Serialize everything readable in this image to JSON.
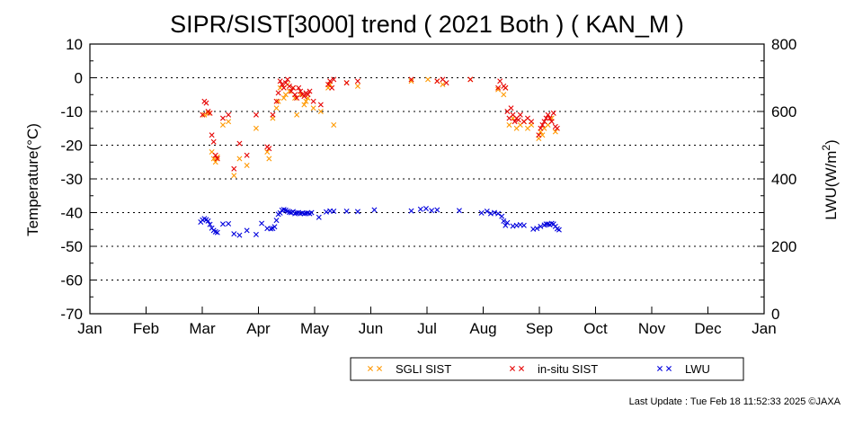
{
  "chart_data": {
    "type": "scatter",
    "title": "SIPR/SIST[3000] trend ( 2021 Both ) ( KAN_M )",
    "ylabel": "Temperature(°C)",
    "y2label_main": "LWU(W/m",
    "y2label_sup": "2",
    "y2label_end": ")",
    "ylim": [
      -70,
      10
    ],
    "y2lim": [
      0,
      800
    ],
    "yticks": [
      "10",
      "0",
      "-10",
      "-20",
      "-30",
      "-40",
      "-50",
      "-60",
      "-70"
    ],
    "y2ticks": [
      "800",
      "600",
      "400",
      "200",
      "0"
    ],
    "months": [
      "Jan",
      "Feb",
      "Mar",
      "Apr",
      "May",
      "Jun",
      "Jul",
      "Aug",
      "Sep",
      "Oct",
      "Nov",
      "Dec",
      "Jan"
    ],
    "grid": true,
    "legend_position": "bottom",
    "series": [
      {
        "name": "SGLI SIST",
        "axis": "left",
        "color": "#ff9900",
        "points": [
          [
            "Mar 4",
            -11
          ],
          [
            "Mar 6",
            -10.5
          ],
          [
            "Mar 8",
            -22
          ],
          [
            "Mar 9",
            -24
          ],
          [
            "Mar 10",
            -25
          ],
          [
            "Mar 11",
            -23.5
          ],
          [
            "Mar 14",
            -14
          ],
          [
            "Mar 17",
            -13
          ],
          [
            "Mar 20",
            -29
          ],
          [
            "Mar 23",
            -24
          ],
          [
            "Mar 27",
            -26
          ],
          [
            "Apr 1",
            -15
          ],
          [
            "Apr 7",
            -22
          ],
          [
            "Apr 8",
            -24
          ],
          [
            "Apr 10",
            -12
          ],
          [
            "Apr 12",
            -9
          ],
          [
            "Apr 13",
            -7
          ],
          [
            "Apr 14",
            -3
          ],
          [
            "Apr 16",
            -6
          ],
          [
            "Apr 17",
            -5
          ],
          [
            "Apr 18",
            -2
          ],
          [
            "Apr 19",
            -4
          ],
          [
            "Apr 21",
            -3
          ],
          [
            "Apr 22",
            -6
          ],
          [
            "Apr 23",
            -11
          ],
          [
            "Apr 25",
            -5
          ],
          [
            "Apr 27",
            -8
          ],
          [
            "Apr 28",
            -7
          ],
          [
            "Apr 29",
            -6
          ],
          [
            "May 2",
            -9
          ],
          [
            "May 6",
            -10
          ],
          [
            "May 10",
            -3
          ],
          [
            "May 11",
            -2
          ],
          [
            "May 13",
            -14
          ],
          [
            "May 20",
            -1.5
          ],
          [
            "May 26",
            -2.5
          ],
          [
            "Jun 24",
            -1
          ],
          [
            "Jul 3",
            -0.5
          ],
          [
            "Jul 8",
            -1
          ],
          [
            "Jul 11",
            -2
          ],
          [
            "Jul 26",
            -0.5
          ],
          [
            "Aug 10",
            -3.5
          ],
          [
            "Aug 13",
            -5
          ],
          [
            "Aug 14",
            -3
          ],
          [
            "Aug 16",
            -14
          ],
          [
            "Aug 18",
            -12
          ],
          [
            "Aug 20",
            -15
          ],
          [
            "Aug 22",
            -14
          ],
          [
            "Aug 24",
            -13
          ],
          [
            "Aug 26",
            -15
          ],
          [
            "Aug 28",
            -14
          ],
          [
            "Sep 1",
            -18
          ],
          [
            "Sep 2",
            -16
          ],
          [
            "Sep 3",
            -17
          ],
          [
            "Sep 4",
            -15
          ],
          [
            "Sep 6",
            -14
          ],
          [
            "Sep 8",
            -12
          ],
          [
            "Sep 10",
            -16
          ]
        ]
      },
      {
        "name": "in-situ SIST",
        "axis": "left",
        "color": "#e60000",
        "points": [
          [
            "Mar 3",
            -11
          ],
          [
            "Mar 4",
            -7
          ],
          [
            "Mar 5",
            -7.5
          ],
          [
            "Mar 6",
            -10
          ],
          [
            "Mar 7",
            -10.5
          ],
          [
            "Mar 8",
            -17
          ],
          [
            "Mar 9",
            -19
          ],
          [
            "Mar 10",
            -23
          ],
          [
            "Mar 11",
            -24
          ],
          [
            "Mar 14",
            -12
          ],
          [
            "Mar 17",
            -11
          ],
          [
            "Mar 20",
            -27
          ],
          [
            "Mar 23",
            -19.5
          ],
          [
            "Mar 27",
            -23
          ],
          [
            "Apr 1",
            -11
          ],
          [
            "Apr 7",
            -20.5
          ],
          [
            "Apr 8",
            -21
          ],
          [
            "Apr 10",
            -11
          ],
          [
            "Apr 12",
            -7
          ],
          [
            "Apr 13",
            -4.5
          ],
          [
            "Apr 14",
            -1
          ],
          [
            "Apr 15",
            -2
          ],
          [
            "Apr 16",
            -3
          ],
          [
            "Apr 17",
            -1.5
          ],
          [
            "Apr 18",
            -0.5
          ],
          [
            "Apr 19",
            -2.5
          ],
          [
            "Apr 20",
            -4
          ],
          [
            "Apr 21",
            -3
          ],
          [
            "Apr 22",
            -5
          ],
          [
            "Apr 23",
            -6
          ],
          [
            "Apr 24",
            -3
          ],
          [
            "Apr 25",
            -4
          ],
          [
            "Apr 26",
            -5
          ],
          [
            "Apr 27",
            -5.5
          ],
          [
            "Apr 28",
            -4.5
          ],
          [
            "Apr 29",
            -5
          ],
          [
            "Apr 30",
            -4
          ],
          [
            "May 2",
            -7
          ],
          [
            "May 6",
            -8
          ],
          [
            "May 10",
            -2
          ],
          [
            "May 11",
            -1
          ],
          [
            "May 12",
            -3
          ],
          [
            "May 13",
            -0.5
          ],
          [
            "May 20",
            -1.5
          ],
          [
            "May 26",
            -1
          ],
          [
            "Jun 24",
            -0.5
          ],
          [
            "Jul 8",
            -1
          ],
          [
            "Jul 11",
            -0.5
          ],
          [
            "Jul 13",
            -1.5
          ],
          [
            "Jul 26",
            -0.5
          ],
          [
            "Aug 10",
            -3
          ],
          [
            "Aug 11",
            -1
          ],
          [
            "Aug 13",
            -2.5
          ],
          [
            "Aug 14",
            -3
          ],
          [
            "Aug 15",
            -10
          ],
          [
            "Aug 16",
            -12
          ],
          [
            "Aug 17",
            -9
          ],
          [
            "Aug 18",
            -11
          ],
          [
            "Aug 19",
            -13
          ],
          [
            "Aug 20",
            -12
          ],
          [
            "Aug 21",
            -12.5
          ],
          [
            "Aug 22",
            -11
          ],
          [
            "Aug 24",
            -13
          ],
          [
            "Aug 26",
            -12
          ],
          [
            "Aug 28",
            -13
          ],
          [
            "Sep 1",
            -17
          ],
          [
            "Sep 2",
            -15
          ],
          [
            "Sep 3",
            -14
          ],
          [
            "Sep 4",
            -13
          ],
          [
            "Sep 5",
            -12
          ],
          [
            "Sep 6",
            -11
          ],
          [
            "Sep 7",
            -12
          ],
          [
            "Sep 8",
            -13
          ],
          [
            "Sep 9",
            -10.5
          ],
          [
            "Sep 10",
            -14.5
          ],
          [
            "Sep 11",
            -15
          ]
        ]
      },
      {
        "name": "LWU",
        "axis": "right",
        "color": "#0000dd",
        "points": [
          [
            "Mar 2",
            272
          ],
          [
            "Mar 3",
            278
          ],
          [
            "Mar 4",
            282
          ],
          [
            "Mar 5",
            279
          ],
          [
            "Mar 6",
            275
          ],
          [
            "Mar 7",
            265
          ],
          [
            "Mar 8",
            254
          ],
          [
            "Mar 9",
            247
          ],
          [
            "Mar 10",
            243
          ],
          [
            "Mar 11",
            241
          ],
          [
            "Mar 14",
            266
          ],
          [
            "Mar 17",
            267
          ],
          [
            "Mar 20",
            237
          ],
          [
            "Mar 23",
            233
          ],
          [
            "Mar 27",
            247
          ],
          [
            "Apr 1",
            235
          ],
          [
            "Apr 4",
            268
          ],
          [
            "Apr 7",
            253
          ],
          [
            "Apr 9",
            252
          ],
          [
            "Apr 10",
            253
          ],
          [
            "Apr 11",
            258
          ],
          [
            "Apr 12",
            277
          ],
          [
            "Apr 13",
            295
          ],
          [
            "Apr 14",
            299
          ],
          [
            "Apr 15",
            307
          ],
          [
            "Apr 16",
            309
          ],
          [
            "Apr 17",
            307
          ],
          [
            "Apr 18",
            304
          ],
          [
            "Apr 19",
            301
          ],
          [
            "Apr 20",
            300
          ],
          [
            "Apr 21",
            303
          ],
          [
            "Apr 22",
            297
          ],
          [
            "Apr 23",
            299
          ],
          [
            "Apr 24",
            300
          ],
          [
            "Apr 25",
            297
          ],
          [
            "Apr 26",
            299
          ],
          [
            "Apr 27",
            297
          ],
          [
            "Apr 28",
            298
          ],
          [
            "Apr 29",
            299
          ],
          [
            "Apr 30",
            297
          ],
          [
            "May 1",
            300
          ],
          [
            "May 5",
            286
          ],
          [
            "May 9",
            302
          ],
          [
            "May 11",
            305
          ],
          [
            "May 13",
            304
          ],
          [
            "May 20",
            304
          ],
          [
            "May 26",
            303
          ],
          [
            "Jun 4",
            308
          ],
          [
            "Jun 24",
            305
          ],
          [
            "Jun 29",
            310
          ],
          [
            "Jul 2",
            312
          ],
          [
            "Jul 5",
            306
          ],
          [
            "Jul 8",
            308
          ],
          [
            "Jul 20",
            306
          ],
          [
            "Aug 1",
            299
          ],
          [
            "Aug 4",
            304
          ],
          [
            "Aug 6",
            297
          ],
          [
            "Aug 8",
            300
          ],
          [
            "Aug 10",
            297
          ],
          [
            "Aug 12",
            289
          ],
          [
            "Aug 13",
            275
          ],
          [
            "Aug 14",
            262
          ],
          [
            "Aug 15",
            270
          ],
          [
            "Aug 18",
            260
          ],
          [
            "Aug 20",
            262
          ],
          [
            "Aug 22",
            264
          ],
          [
            "Aug 24",
            262
          ],
          [
            "Aug 29",
            251
          ],
          [
            "Aug 31",
            253
          ],
          [
            "Sep 2",
            259
          ],
          [
            "Sep 4",
            263
          ],
          [
            "Sep 5",
            266
          ],
          [
            "Sep 6",
            266
          ],
          [
            "Sep 7",
            264
          ],
          [
            "Sep 8",
            268
          ],
          [
            "Sep 9",
            266
          ],
          [
            "Sep 10",
            259
          ],
          [
            "Sep 11",
            252
          ],
          [
            "Sep 12",
            249
          ]
        ]
      }
    ]
  },
  "footer": {
    "last_update": "Last Update : Tue Feb 18 11:52:33 2025  ©JAXA"
  }
}
